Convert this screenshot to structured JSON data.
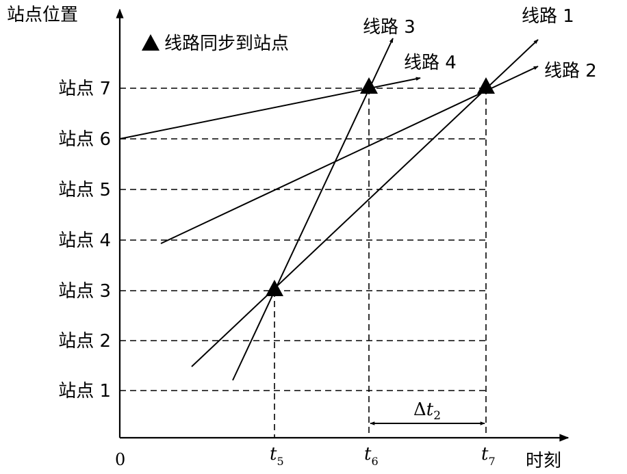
{
  "diagram": {
    "y_axis_label": "站点位置",
    "x_axis_label": "时刻",
    "origin_label": "0",
    "legend_text": "线路同步到站点",
    "stations": [
      "站点 1",
      "站点 2",
      "站点 3",
      "站点 4",
      "站点 5",
      "站点 6",
      "站点 7"
    ],
    "time_labels": [
      {
        "italic": "t",
        "sub": "5"
      },
      {
        "italic": "t",
        "sub": "6"
      },
      {
        "italic": "t",
        "sub": "7"
      }
    ],
    "interval_label": {
      "prefix": "Δ",
      "italic": "t",
      "sub": "2"
    },
    "routes": [
      {
        "label": "线路 1"
      },
      {
        "label": "线路 2"
      },
      {
        "label": "线路 3"
      },
      {
        "label": "线路 4"
      }
    ],
    "colors": {
      "ink": "#000000",
      "background": "#ffffff"
    }
  }
}
